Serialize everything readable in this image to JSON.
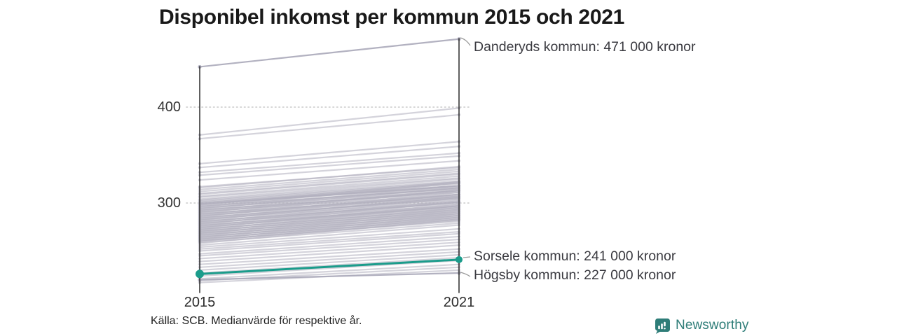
{
  "title": "Disponibel inkomst per kommun 2015 och 2021",
  "source": "Källa: SCB. Medianvärde för respektive år.",
  "branding": {
    "name": "Newsworthy",
    "logo_icon": "bar-chart-bubble-icon",
    "color": "#2e7d78"
  },
  "chart_data": {
    "type": "line",
    "subtype": "slope",
    "title": "Disponibel inkomst per kommun 2015 och 2021",
    "x": [
      2015,
      2021
    ],
    "x_labels": [
      "2015",
      "2021"
    ],
    "y_ticks": [
      400,
      300
    ],
    "y_tick_labels": [
      "400",
      "300"
    ],
    "y_unit": "tusen kronor",
    "ylim": [
      207,
      475
    ],
    "grid": "dotted-horizontal-at-ticks",
    "legend": "none",
    "line_color": "#b0aebe",
    "highlight_color": "#1b9c8b",
    "annotated_series": [
      {
        "name": "Danderyds kommun",
        "label": "Danderyds kommun: 471 000 kronor",
        "values": [
          442,
          471
        ],
        "highlighted": false
      },
      {
        "name": "Sorsele kommun",
        "label": "Sorsele kommun: 241 000 kronor",
        "values": [
          226,
          241
        ],
        "highlighted": true
      },
      {
        "name": "Högsby kommun",
        "label": "Högsby kommun: 227 000 kronor",
        "values": [
          220,
          227
        ],
        "highlighted": false
      }
    ],
    "background_lines": [
      [
        371,
        399
      ],
      [
        367,
        392
      ],
      [
        341,
        364
      ],
      [
        337,
        359
      ],
      [
        332,
        352
      ],
      [
        329,
        349
      ],
      [
        324,
        344
      ],
      [
        317,
        337
      ],
      [
        316,
        338
      ],
      [
        314,
        335
      ],
      [
        312,
        333
      ],
      [
        310,
        331
      ],
      [
        309,
        330
      ],
      [
        307,
        328
      ],
      [
        306,
        326
      ],
      [
        304,
        325
      ],
      [
        303,
        323
      ],
      [
        302,
        322
      ],
      [
        301,
        321
      ],
      [
        300,
        320
      ],
      [
        300,
        318
      ],
      [
        299,
        318
      ],
      [
        299,
        317
      ],
      [
        298,
        322
      ],
      [
        297,
        315
      ],
      [
        296,
        321
      ],
      [
        295,
        313
      ],
      [
        294,
        318
      ],
      [
        293,
        311
      ],
      [
        292,
        316
      ],
      [
        291,
        309
      ],
      [
        290,
        314
      ],
      [
        289,
        307
      ],
      [
        288,
        313
      ],
      [
        287,
        306
      ],
      [
        286,
        311
      ],
      [
        285,
        304
      ],
      [
        284,
        309
      ],
      [
        283,
        302
      ],
      [
        282,
        307
      ],
      [
        281,
        300
      ],
      [
        280,
        305
      ],
      [
        279,
        298
      ],
      [
        278,
        303
      ],
      [
        277,
        296
      ],
      [
        276,
        301
      ],
      [
        275,
        295
      ],
      [
        274,
        299
      ],
      [
        273,
        293
      ],
      [
        272,
        297
      ],
      [
        271,
        291
      ],
      [
        270,
        295
      ],
      [
        269,
        289
      ],
      [
        268,
        293
      ],
      [
        267,
        287
      ],
      [
        266,
        291
      ],
      [
        265,
        285
      ],
      [
        264,
        289
      ],
      [
        263,
        283
      ],
      [
        262,
        287
      ],
      [
        261,
        281
      ],
      [
        260,
        285
      ],
      [
        259,
        279
      ],
      [
        258,
        283
      ],
      [
        298.5,
        318
      ],
      [
        296.5,
        315
      ],
      [
        294.5,
        316
      ],
      [
        292.5,
        312
      ],
      [
        290.5,
        313
      ],
      [
        288.5,
        308
      ],
      [
        286.5,
        309
      ],
      [
        284.5,
        305
      ],
      [
        282.5,
        306
      ],
      [
        280.5,
        301
      ],
      [
        278.5,
        301
      ],
      [
        276.5,
        297
      ],
      [
        274.5,
        297
      ],
      [
        272.5,
        294
      ],
      [
        270.5,
        292
      ],
      [
        268.5,
        290
      ],
      [
        266.5,
        288
      ],
      [
        264.5,
        286
      ],
      [
        262.5,
        284
      ],
      [
        260.5,
        282
      ],
      [
        256,
        277
      ],
      [
        254,
        273
      ],
      [
        252,
        270
      ],
      [
        250,
        268
      ],
      [
        247,
        265
      ],
      [
        245,
        262
      ],
      [
        242,
        259
      ],
      [
        239,
        256
      ],
      [
        236,
        252
      ],
      [
        233,
        249
      ],
      [
        230,
        246
      ],
      [
        227,
        243
      ],
      [
        224,
        240
      ],
      [
        221,
        236
      ],
      [
        219,
        233
      ],
      [
        217,
        230
      ]
    ]
  }
}
